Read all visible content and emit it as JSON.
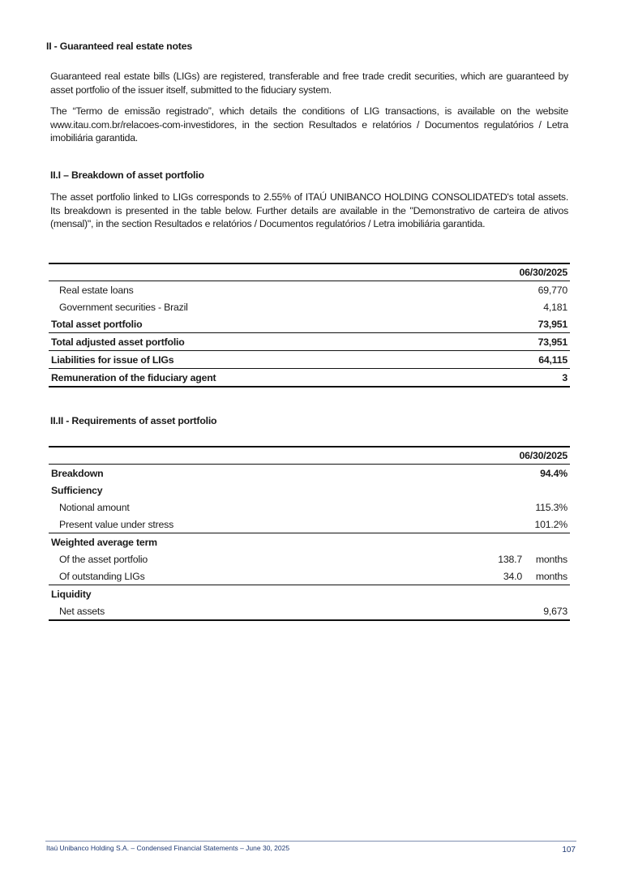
{
  "section_title": "II - Guaranteed real estate notes",
  "para1": "Guaranteed real estate bills (LIGs) are registered, transferable and free trade credit securities, which are guaranteed by asset portfolio of the issuer itself, submitted to the fiduciary system.",
  "para2": "The “Termo de emissão registrado”, which details the conditions of LIG transactions, is available on the website www.itau.com.br/relacoes-com-investidores, in the section Resultados e relatórios / Documentos regulatórios / Letra imobiliária garantida.",
  "sub1_title": "II.I – Breakdown of asset portfolio",
  "para3": "The asset portfolio linked to LIGs corresponds to 2.55% of ITAÚ UNIBANCO HOLDING CONSOLIDATED's total assets. Its breakdown is presented in the table below. Further details are available in the \"Demonstrativo de carteira de ativos (mensal)\", in the section Resultados e relatórios / Documentos regulatórios / Letra imobiliária garantida.",
  "table1": {
    "header": "06/30/2025",
    "rows": [
      {
        "label": "Real estate loans",
        "value": "69,770"
      },
      {
        "label": "Government securities - Brazil",
        "value": "4,181"
      },
      {
        "label": "Total asset portfolio",
        "value": "73,951"
      },
      {
        "label": "Total adjusted asset portfolio",
        "value": "73,951"
      },
      {
        "label": "Liabilities for issue of LIGs",
        "value": "64,115"
      },
      {
        "label": "Remuneration of the fiduciary agent",
        "value": "3"
      }
    ]
  },
  "sub2_title": "II.II - Requirements of asset portfolio",
  "table2": {
    "header": "06/30/2025",
    "rows": [
      {
        "label": "Breakdown",
        "value": "94.4%"
      },
      {
        "label": "Sufficiency",
        "value": ""
      },
      {
        "label": "Notional amount",
        "value": "115.3%"
      },
      {
        "label": "Present value under stress",
        "value": "101.2%"
      },
      {
        "label": "Weighted average term",
        "value": ""
      },
      {
        "label": "Of the asset portfolio",
        "value": "138.7",
        "unit": "months"
      },
      {
        "label": "Of outstanding LIGs",
        "value": "34.0",
        "unit": "months"
      },
      {
        "label": "Liquidity",
        "value": ""
      },
      {
        "label": "Net assets",
        "value": "9,673"
      }
    ]
  },
  "footer": {
    "text": "Itaú Unibanco Holding S.A. – Condensed Financial Statements – June 30, 2025",
    "page": "107"
  }
}
